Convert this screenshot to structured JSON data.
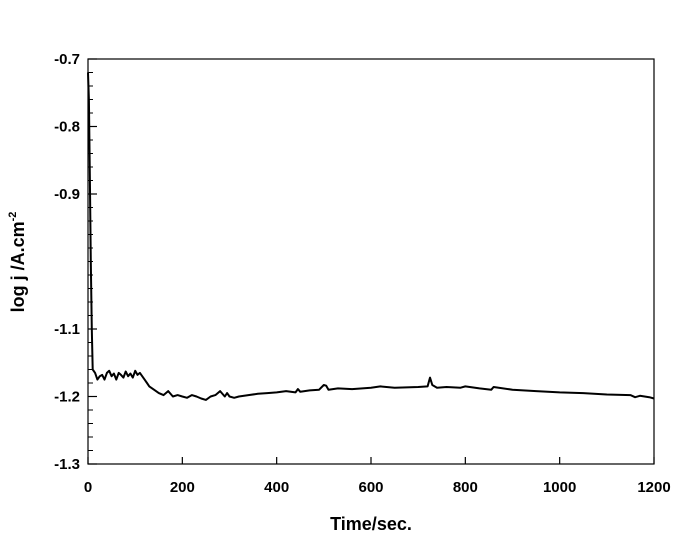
{
  "chart_data": {
    "type": "line",
    "xlabel": "Time/sec.",
    "ylabel": "log j /A.cm",
    "ylabel_superscript": "-2",
    "xlim": [
      0,
      1200
    ],
    "ylim": [
      -1.3,
      -0.7
    ],
    "xticks": [
      0,
      200,
      400,
      600,
      800,
      1000,
      1200
    ],
    "xtick_labels": [
      "0",
      "200",
      "400",
      "600",
      "800",
      "1000",
      "1200"
    ],
    "yticks": [
      -0.7,
      -0.8,
      -0.9,
      -1.1,
      -1.2,
      -1.3
    ],
    "ytick_labels": [
      "-0.7",
      "-0.8",
      "-0.9",
      "-1.1",
      "-1.2",
      "-1.3"
    ],
    "y_minor_step": 0.02,
    "grid": false,
    "line_color": "#000000",
    "series": [
      {
        "x": [
          0,
          2,
          4,
          6,
          8,
          10,
          15,
          20,
          25,
          30,
          35,
          40,
          45,
          50,
          55,
          60,
          65,
          70,
          75,
          80,
          85,
          90,
          95,
          100,
          105,
          110,
          115,
          120,
          125,
          130,
          140,
          150,
          160,
          170,
          180,
          190,
          200,
          210,
          220,
          230,
          240,
          250,
          260,
          270,
          280,
          290,
          295,
          300,
          310,
          320,
          340,
          360,
          380,
          400,
          420,
          440,
          445,
          450,
          470,
          490,
          500,
          505,
          510,
          530,
          560,
          600,
          620,
          650,
          700,
          720,
          725,
          730,
          740,
          760,
          790,
          800,
          830,
          855,
          860,
          900,
          950,
          1000,
          1050,
          1100,
          1150,
          1160,
          1170,
          1180,
          1190,
          1200
        ],
        "y": [
          -0.72,
          -0.76,
          -0.88,
          -1.0,
          -1.1,
          -1.16,
          -1.165,
          -1.175,
          -1.17,
          -1.168,
          -1.175,
          -1.165,
          -1.162,
          -1.17,
          -1.166,
          -1.175,
          -1.165,
          -1.168,
          -1.172,
          -1.163,
          -1.17,
          -1.166,
          -1.172,
          -1.162,
          -1.168,
          -1.165,
          -1.17,
          -1.175,
          -1.18,
          -1.185,
          -1.19,
          -1.195,
          -1.198,
          -1.192,
          -1.2,
          -1.198,
          -1.2,
          -1.202,
          -1.198,
          -1.2,
          -1.203,
          -1.205,
          -1.2,
          -1.198,
          -1.192,
          -1.2,
          -1.195,
          -1.2,
          -1.202,
          -1.2,
          -1.198,
          -1.196,
          -1.195,
          -1.194,
          -1.192,
          -1.194,
          -1.189,
          -1.193,
          -1.191,
          -1.19,
          -1.183,
          -1.184,
          -1.19,
          -1.188,
          -1.189,
          -1.187,
          -1.185,
          -1.187,
          -1.186,
          -1.185,
          -1.172,
          -1.183,
          -1.187,
          -1.186,
          -1.187,
          -1.185,
          -1.188,
          -1.19,
          -1.186,
          -1.19,
          -1.192,
          -1.194,
          -1.195,
          -1.197,
          -1.198,
          -1.201,
          -1.199,
          -1.2,
          -1.201,
          -1.203
        ]
      }
    ]
  }
}
